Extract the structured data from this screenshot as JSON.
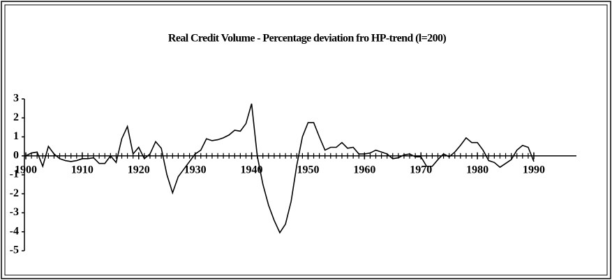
{
  "chart_data": {
    "type": "line",
    "title": "Real Credit Volume - Percentage deviation fro HP-trend (l=200)",
    "x": [
      1900,
      1901,
      1902,
      1903,
      1904,
      1905,
      1906,
      1907,
      1908,
      1909,
      1910,
      1911,
      1912,
      1913,
      1914,
      1915,
      1916,
      1917,
      1918,
      1919,
      1920,
      1921,
      1922,
      1923,
      1924,
      1925,
      1926,
      1927,
      1928,
      1929,
      1930,
      1931,
      1932,
      1933,
      1934,
      1935,
      1936,
      1937,
      1938,
      1939,
      1940,
      1941,
      1942,
      1943,
      1944,
      1945,
      1946,
      1947,
      1948,
      1949,
      1950,
      1951,
      1952,
      1953,
      1954,
      1955,
      1956,
      1957,
      1958,
      1959,
      1960,
      1961,
      1962,
      1963,
      1964,
      1965,
      1966,
      1967,
      1968,
      1969,
      1970,
      1971,
      1972,
      1973,
      1974,
      1975,
      1976,
      1977,
      1978,
      1979,
      1980,
      1981,
      1982,
      1983,
      1984,
      1985,
      1986,
      1987,
      1988,
      1989,
      1990
    ],
    "series": [
      {
        "color": "#000000",
        "values": [
          0.0,
          0.15,
          0.2,
          -0.55,
          0.5,
          0.1,
          -0.15,
          -0.25,
          -0.3,
          -0.25,
          -0.15,
          -0.15,
          -0.1,
          -0.4,
          -0.4,
          0.0,
          -0.35,
          0.9,
          1.55,
          0.1,
          0.45,
          -0.15,
          0.1,
          0.75,
          0.4,
          -1.0,
          -1.95,
          -1.1,
          -0.7,
          -0.3,
          0.1,
          0.3,
          0.9,
          0.8,
          0.85,
          0.95,
          1.1,
          1.35,
          1.3,
          1.7,
          2.75,
          0.0,
          -1.5,
          -2.6,
          -3.4,
          -4.05,
          -3.6,
          -2.4,
          -0.5,
          1.0,
          1.75,
          1.75,
          1.0,
          0.3,
          0.45,
          0.45,
          0.7,
          0.4,
          0.45,
          0.1,
          0.1,
          0.15,
          0.3,
          0.2,
          0.1,
          -0.15,
          -0.1,
          0.05,
          0.1,
          -0.05,
          -0.05,
          -0.55,
          -0.55,
          -0.2,
          0.1,
          -0.05,
          0.2,
          0.55,
          0.95,
          0.7,
          0.7,
          0.3,
          -0.25,
          -0.35,
          -0.6,
          -0.4,
          -0.2,
          0.3,
          0.55,
          0.45,
          -0.3
        ]
      }
    ],
    "xlim": [
      1900,
      1990
    ],
    "xticks": [
      1900,
      1910,
      1920,
      1930,
      1940,
      1950,
      1960,
      1970,
      1980,
      1990
    ],
    "ylim": [
      -5,
      3
    ],
    "yticks": [
      -5,
      -4,
      -3,
      -2,
      -1,
      0,
      1,
      2,
      3
    ]
  }
}
